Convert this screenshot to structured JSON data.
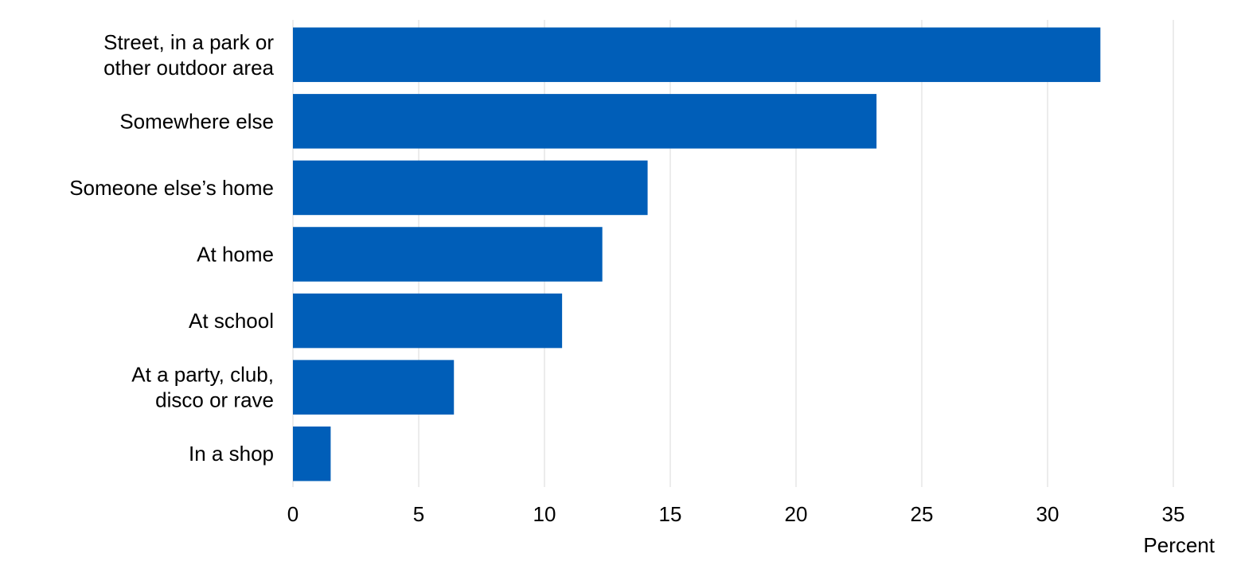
{
  "chart_data": {
    "type": "bar",
    "orientation": "horizontal",
    "categories": [
      [
        "Street, in a park or",
        "other outdoor area"
      ],
      [
        "Somewhere else"
      ],
      [
        "Someone else’s home"
      ],
      [
        "At home"
      ],
      [
        "At school"
      ],
      [
        "At a party, club,",
        "disco or rave"
      ],
      [
        "In a shop"
      ]
    ],
    "values": [
      32.1,
      23.2,
      14.1,
      12.3,
      10.7,
      6.4,
      1.5
    ],
    "xlabel": "Percent",
    "ylabel": "",
    "title": "",
    "xlim": [
      0,
      35
    ],
    "x_ticks": [
      "0",
      "5",
      "10",
      "15",
      "20",
      "25",
      "30",
      "35"
    ],
    "grid": "vertical",
    "legend": "none",
    "colors": {
      "bar": "#005EB8",
      "grid": "#D9D9D9",
      "text": "#000000"
    }
  }
}
